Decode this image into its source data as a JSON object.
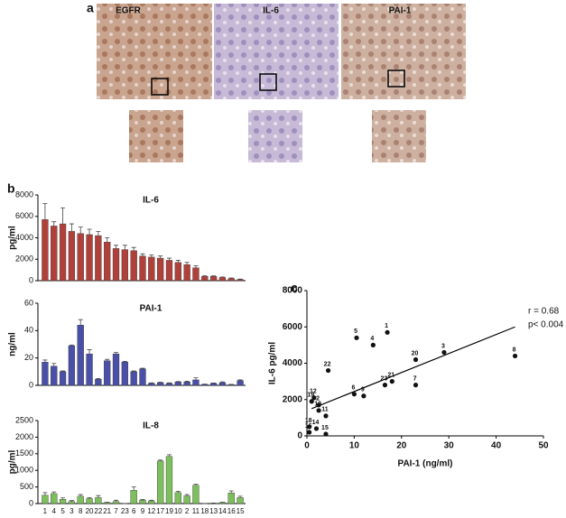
{
  "panel_a": {
    "label": "a",
    "images": [
      "EGFR",
      "IL-6",
      "PAI-1"
    ]
  },
  "chart_data": [
    {
      "type": "bar",
      "panel_label": "b",
      "title": "IL-6",
      "ylabel": "pg/ml",
      "color": "#b0403a",
      "values": [
        5700,
        5100,
        5300,
        4600,
        4400,
        4300,
        4200,
        3600,
        3000,
        2900,
        2800,
        2300,
        2200,
        2100,
        1900,
        1700,
        1500,
        1200,
        400,
        400,
        300,
        200,
        100
      ],
      "errors": [
        1500,
        400,
        1500,
        700,
        600,
        500,
        400,
        400,
        300,
        400,
        300,
        200,
        200,
        200,
        200,
        200,
        200,
        200,
        50,
        50,
        50,
        50,
        50
      ],
      "ylim": [
        0,
        8000
      ],
      "yticks": [
        0,
        2000,
        4000,
        6000,
        8000
      ]
    },
    {
      "type": "bar",
      "title": "PAI-1",
      "ylabel": "ng/ml",
      "color": "#4a4fa8",
      "values": [
        17,
        14,
        10,
        29,
        44,
        23,
        4.5,
        18,
        23,
        17,
        10,
        12,
        1.5,
        2,
        1.5,
        2.5,
        2.5,
        4,
        0.7,
        1.5,
        2,
        0.5,
        3.5
      ],
      "errors": [
        1.5,
        2,
        0.5,
        0.5,
        4,
        3,
        0.5,
        1,
        1,
        0.5,
        0.5,
        0.5,
        0.3,
        0.3,
        0.3,
        0.3,
        0.5,
        1.5,
        0.2,
        0.2,
        0.5,
        0.2,
        0.5
      ],
      "ylim": [
        0,
        60
      ],
      "yticks": [
        0,
        20,
        40,
        60
      ]
    },
    {
      "type": "bar",
      "title": "IL-8",
      "ylabel": "pg/ml",
      "color": "#7dbf5c",
      "categories": [
        "1",
        "4",
        "5",
        "3",
        "8",
        "20",
        "22",
        "21",
        "7",
        "23",
        "6",
        "9",
        "12",
        "17",
        "19",
        "10",
        "2",
        "11",
        "18",
        "13",
        "14",
        "16",
        "15"
      ],
      "values": [
        250,
        300,
        130,
        60,
        220,
        150,
        180,
        30,
        60,
        0,
        400,
        100,
        80,
        1280,
        1420,
        330,
        230,
        550,
        0,
        10,
        30,
        320,
        180
      ],
      "errors": [
        80,
        50,
        40,
        30,
        50,
        30,
        60,
        10,
        40,
        0,
        100,
        20,
        20,
        30,
        50,
        40,
        40,
        30,
        0,
        5,
        10,
        60,
        40
      ],
      "ylim": [
        0,
        2500
      ],
      "yticks": [
        0,
        500,
        1000,
        1500,
        2000,
        2500
      ]
    },
    {
      "type": "scatter",
      "panel_label": "c",
      "xlabel": "PAI-1 (ng/ml)",
      "ylabel": "IL-6 pg/ml",
      "color": "#111111",
      "labels": [
        "1",
        "2",
        "3",
        "4",
        "5",
        "6",
        "7",
        "8",
        "9",
        "10",
        "11",
        "12",
        "14",
        "15",
        "16",
        "18",
        "19",
        "20",
        "21",
        "22",
        "23"
      ],
      "x": [
        17,
        2.5,
        29,
        14,
        10.5,
        10,
        23,
        44,
        12,
        2.5,
        4,
        1.5,
        2,
        4,
        0.5,
        0.5,
        1,
        23,
        18,
        4.5,
        16.5
      ],
      "y": [
        5700,
        1700,
        4600,
        5000,
        5400,
        2300,
        2800,
        4400,
        2200,
        1400,
        1100,
        2100,
        400,
        100,
        200,
        500,
        1900,
        4200,
        3000,
        3600,
        2800
      ],
      "trendline": {
        "x": [
          1,
          44
        ],
        "y": [
          1500,
          6000
        ]
      },
      "annotations": [
        "r = 0.68",
        "p< 0.004"
      ],
      "xlim": [
        0,
        50
      ],
      "xticks": [
        0,
        10,
        20,
        30,
        40,
        50
      ],
      "ylim": [
        0,
        8000
      ],
      "yticks": [
        0,
        2000,
        4000,
        6000,
        8000
      ]
    }
  ]
}
